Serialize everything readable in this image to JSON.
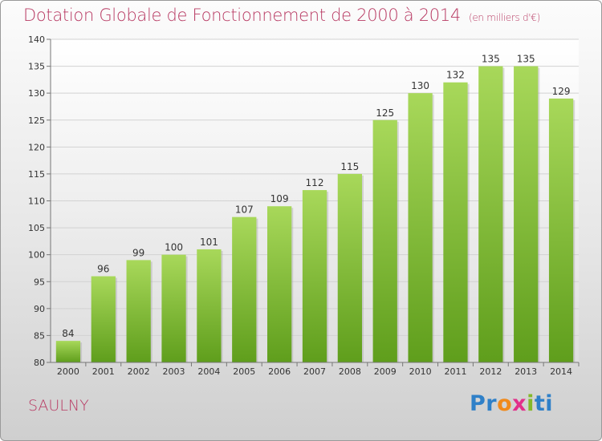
{
  "title": "Dotation Globale de Fonctionnement de 2000 à 2014",
  "unit_label": "(en milliers d'€)",
  "commune": "SAULNY",
  "logo": {
    "parts": [
      "Pr",
      "o",
      "x",
      "i",
      "ti"
    ]
  },
  "colors": {
    "title": "#b83a63",
    "bar_top": "#a8d85a",
    "bar_bottom": "#5f9e1c",
    "axis": "#777777"
  },
  "chart_data": {
    "type": "bar",
    "title": "Dotation Globale de Fonctionnement de 2000 à 2014",
    "subtitle": "(en milliers d'€)",
    "xlabel": "",
    "ylabel": "",
    "ylim": [
      80,
      140
    ],
    "ytick_step": 5,
    "yticks": [
      "80",
      "85",
      "90",
      "95",
      "100",
      "105",
      "110",
      "115",
      "120",
      "125",
      "130",
      "135",
      "140"
    ],
    "grid": true,
    "categories": [
      "2000",
      "2001",
      "2002",
      "2003",
      "2004",
      "2005",
      "2006",
      "2007",
      "2008",
      "2009",
      "2010",
      "2011",
      "2012",
      "2013",
      "2014"
    ],
    "values": [
      84,
      96,
      99,
      100,
      101,
      107,
      109,
      112,
      115,
      125,
      130,
      132,
      135,
      135,
      129
    ]
  }
}
